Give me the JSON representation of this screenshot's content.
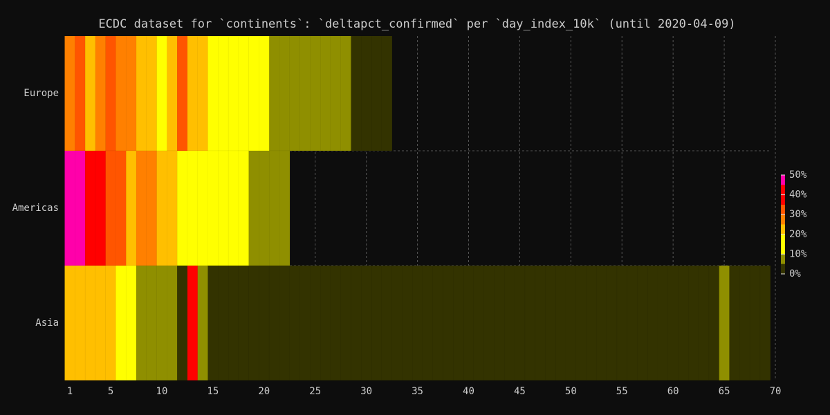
{
  "chart_data": {
    "type": "heatmap",
    "title": "ECDC dataset for `continents`: `deltapct_confirmed` per `day_index_10k` (until 2020-04-09)",
    "x": [
      1,
      2,
      3,
      4,
      5,
      6,
      7,
      8,
      9,
      10,
      11,
      12,
      13,
      14,
      15,
      16,
      17,
      18,
      19,
      20,
      21,
      22,
      23,
      24,
      25,
      26,
      27,
      28,
      29,
      30,
      31,
      32,
      33,
      34,
      35,
      36,
      37,
      38,
      39,
      40,
      41,
      42,
      43,
      44,
      45,
      46,
      47,
      48,
      49,
      50,
      51,
      52,
      53,
      54,
      55,
      56,
      57,
      58,
      59,
      60,
      61,
      62,
      63,
      64,
      65,
      66,
      67,
      68,
      69
    ],
    "series": [
      {
        "name": "Europe",
        "values": [
          27,
          32,
          22,
          27,
          32,
          27,
          27,
          22,
          22,
          17,
          22,
          31,
          22,
          22,
          17,
          15,
          14,
          13,
          12,
          11,
          8,
          8,
          8,
          7,
          7,
          7,
          6,
          6,
          3,
          3,
          2,
          2,
          null,
          null,
          null,
          null,
          null,
          null,
          null,
          null,
          null,
          null,
          null,
          null,
          null,
          null,
          null,
          null,
          null,
          null,
          null,
          null,
          null,
          null,
          null,
          null,
          null,
          null,
          null,
          null,
          null,
          null,
          null,
          null,
          null,
          null,
          null,
          null,
          null
        ]
      },
      {
        "name": "Americas",
        "values": [
          46,
          48,
          38,
          38,
          32,
          31,
          22,
          27,
          26,
          22,
          21,
          17,
          16,
          15,
          14,
          13,
          12,
          11,
          8,
          8,
          7,
          7,
          null,
          null,
          null,
          null,
          null,
          null,
          null,
          null,
          null,
          null,
          null,
          null,
          null,
          null,
          null,
          null,
          null,
          null,
          null,
          null,
          null,
          null,
          null,
          null,
          null,
          null,
          null,
          null,
          null,
          null,
          null,
          null,
          null,
          null,
          null,
          null,
          null,
          null,
          null,
          null,
          null,
          null,
          null,
          null,
          null,
          null,
          null
        ]
      },
      {
        "name": "Asia",
        "values": [
          22,
          22,
          22,
          22,
          22,
          15,
          15,
          8,
          8,
          8,
          8,
          2,
          40,
          7,
          2,
          2,
          2,
          2,
          2,
          2,
          2,
          2,
          2,
          2,
          2,
          2,
          2,
          2,
          2,
          2,
          2,
          2,
          2,
          2,
          2,
          2,
          2,
          2,
          2,
          2,
          2,
          2,
          2,
          2,
          2,
          2,
          2,
          2,
          2,
          2,
          2,
          2,
          2,
          2,
          2,
          2,
          2,
          2,
          2,
          2,
          2,
          2,
          2,
          2,
          6,
          2,
          2,
          2,
          2
        ]
      }
    ],
    "xlim": [
      0.6,
      70
    ],
    "xticks": [
      1,
      5,
      10,
      15,
      20,
      25,
      30,
      35,
      40,
      45,
      50,
      55,
      60,
      65,
      70
    ],
    "color_bins": [
      0,
      5,
      10,
      20,
      25,
      30,
      35,
      45,
      50
    ],
    "color_bin_colors": [
      "#333300",
      "#8f8f00",
      "#ffff00",
      "#ffbf00",
      "#ff8000",
      "#ff5500",
      "#ff0000",
      "#ff00aa"
    ],
    "colorbar_ticks": [
      {
        "value": 0,
        "label": "0%"
      },
      {
        "value": 10,
        "label": "10%"
      },
      {
        "value": 20,
        "label": "20%"
      },
      {
        "value": 30,
        "label": "30%"
      },
      {
        "value": 40,
        "label": "40%"
      },
      {
        "value": 50,
        "label": "50%"
      }
    ],
    "grid": true
  }
}
